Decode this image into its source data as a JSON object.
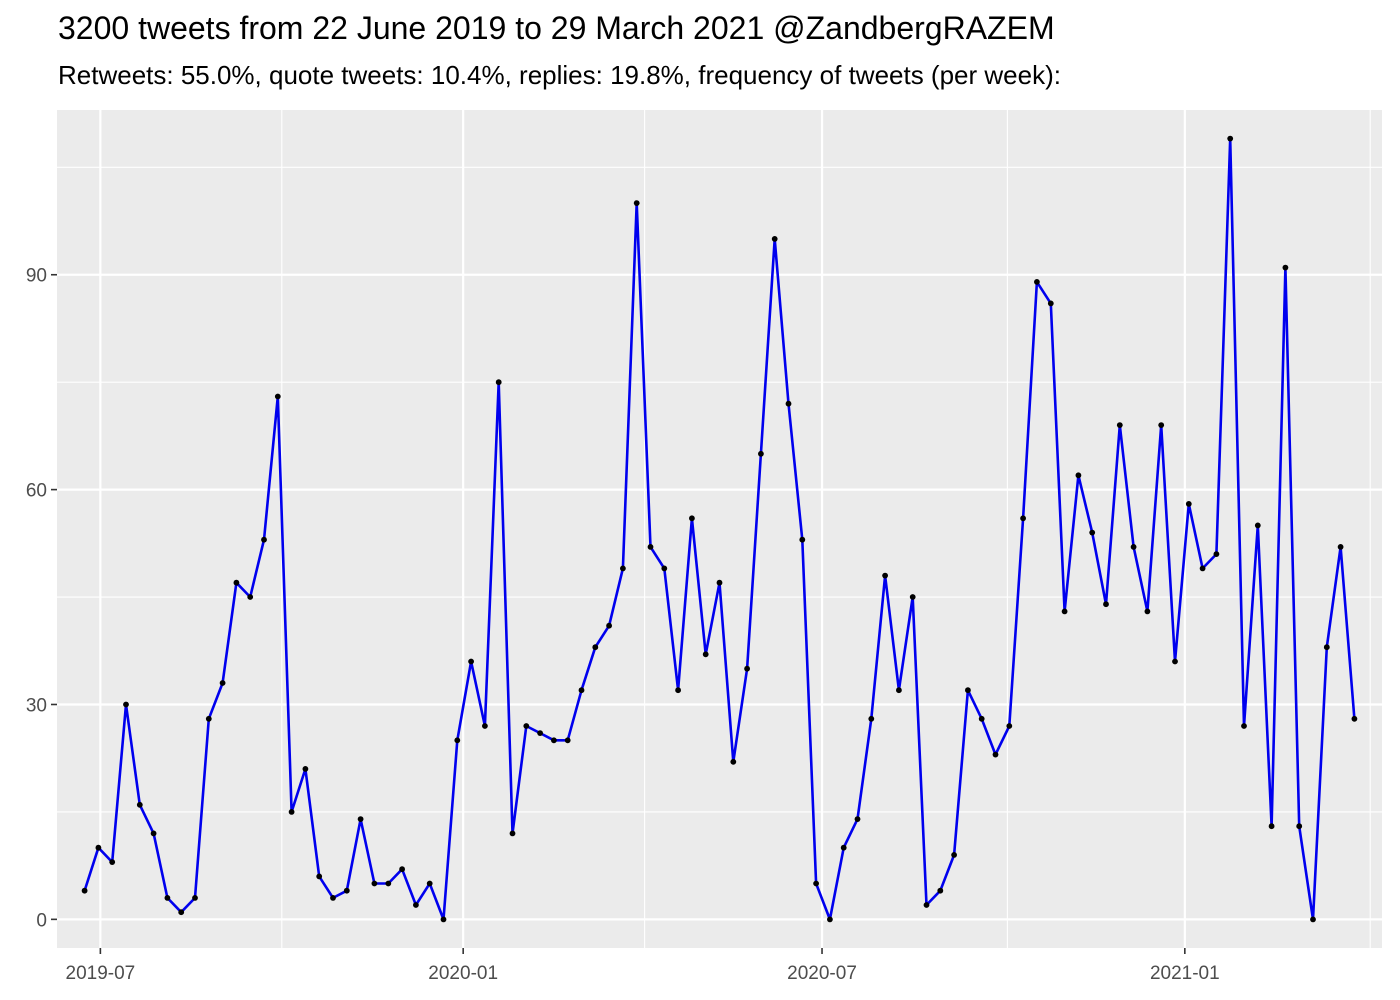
{
  "chart_data": {
    "type": "line",
    "title": "3200 tweets from 22 June 2019 to 29 March 2021 @ZandbergRAZEM",
    "subtitle": "Retweets: 55.0%, quote tweets: 10.4%, replies: 19.8%, frequency of tweets (per week):",
    "xlabel": "",
    "ylabel": "",
    "x_axis": {
      "type": "date",
      "range": [
        "2019-06-09",
        "2021-04-11"
      ],
      "tick_dates": [
        "2019-07-01",
        "2020-01-01",
        "2020-07-01",
        "2021-01-01"
      ],
      "tick_labels": [
        "2019-07",
        "2020-01",
        "2020-07",
        "2021-01"
      ]
    },
    "y_axis": {
      "range": [
        -4,
        113
      ],
      "ticks": [
        0,
        30,
        60,
        90
      ],
      "tick_labels": [
        "0",
        "30",
        "60",
        "90"
      ]
    },
    "grid": true,
    "line_color": "#0000ee",
    "point_color": "#000000",
    "panel_background": "#ebebeb",
    "series": [
      {
        "x": [
          "2019-06-23",
          "2019-06-30",
          "2019-07-07",
          "2019-07-14",
          "2019-07-21",
          "2019-07-28",
          "2019-08-04",
          "2019-08-11",
          "2019-08-18",
          "2019-08-25",
          "2019-09-01",
          "2019-09-08",
          "2019-09-15",
          "2019-09-22",
          "2019-09-29",
          "2019-10-06",
          "2019-10-13",
          "2019-10-20",
          "2019-10-27",
          "2019-11-03",
          "2019-11-10",
          "2019-11-17",
          "2019-11-24",
          "2019-12-01",
          "2019-12-08",
          "2019-12-15",
          "2019-12-22",
          "2019-12-29",
          "2020-01-05",
          "2020-01-12",
          "2020-01-19",
          "2020-01-26",
          "2020-02-02",
          "2020-02-09",
          "2020-02-16",
          "2020-02-23",
          "2020-03-01",
          "2020-03-08",
          "2020-03-15",
          "2020-03-22",
          "2020-03-29",
          "2020-04-05",
          "2020-04-12",
          "2020-04-19",
          "2020-04-26",
          "2020-05-03",
          "2020-05-10",
          "2020-05-17",
          "2020-05-24",
          "2020-05-31",
          "2020-06-07",
          "2020-06-14",
          "2020-06-21",
          "2020-06-28",
          "2020-07-05",
          "2020-07-12",
          "2020-07-19",
          "2020-07-26",
          "2020-08-02",
          "2020-08-09",
          "2020-08-16",
          "2020-08-23",
          "2020-08-30",
          "2020-09-06",
          "2020-09-13",
          "2020-09-20",
          "2020-09-27",
          "2020-10-04",
          "2020-10-11",
          "2020-10-18",
          "2020-10-25",
          "2020-11-01",
          "2020-11-08",
          "2020-11-15",
          "2020-11-22",
          "2020-11-29",
          "2020-12-06",
          "2020-12-13",
          "2020-12-20",
          "2020-12-27",
          "2021-01-03",
          "2021-01-10",
          "2021-01-17",
          "2021-01-24",
          "2021-01-31",
          "2021-02-07",
          "2021-02-14",
          "2021-02-21",
          "2021-02-28",
          "2021-03-07",
          "2021-03-14",
          "2021-03-21",
          "2021-03-28"
        ],
        "values": [
          4,
          10,
          8,
          30,
          16,
          12,
          3,
          1,
          3,
          28,
          33,
          47,
          45,
          53,
          73,
          15,
          21,
          6,
          3,
          4,
          14,
          5,
          5,
          7,
          2,
          5,
          0,
          25,
          36,
          27,
          75,
          12,
          27,
          26,
          25,
          25,
          32,
          38,
          41,
          49,
          100,
          52,
          49,
          32,
          56,
          37,
          47,
          22,
          35,
          65,
          95,
          72,
          53,
          5,
          0,
          10,
          14,
          28,
          48,
          32,
          45,
          2,
          4,
          9,
          32,
          28,
          23,
          27,
          56,
          89,
          86,
          43,
          62,
          54,
          44,
          69,
          52,
          43,
          69,
          36,
          58,
          49,
          51,
          109,
          27,
          55,
          13,
          91,
          13,
          0,
          38,
          52,
          28
        ]
      }
    ]
  }
}
